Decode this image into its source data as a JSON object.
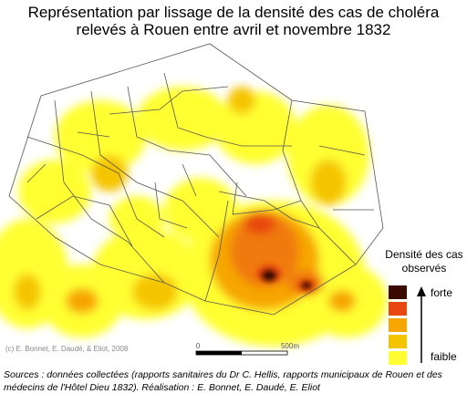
{
  "title": [
    "Représentation par lissage de la densité des cas de choléra",
    "relevés à Rouen entre avril et novembre 1832"
  ],
  "map": {
    "credit": "(c) E. Bonnet, E. Daudé, & Eliot, 2008",
    "scale": {
      "start": "0",
      "end": "500m"
    }
  },
  "legend": {
    "title": [
      "Densité des cas",
      "observés"
    ],
    "high": "forte",
    "low": "faible"
  },
  "sources": [
    "Sources : données collectées (rapports sanitaires du Dr C. Hellis, rapports municipaux de Rouen et des",
    "médecins de l'Hôtel Dieu 1832). Réalisation : E. Bonnet, E. Daudé, E. Eliot"
  ]
}
